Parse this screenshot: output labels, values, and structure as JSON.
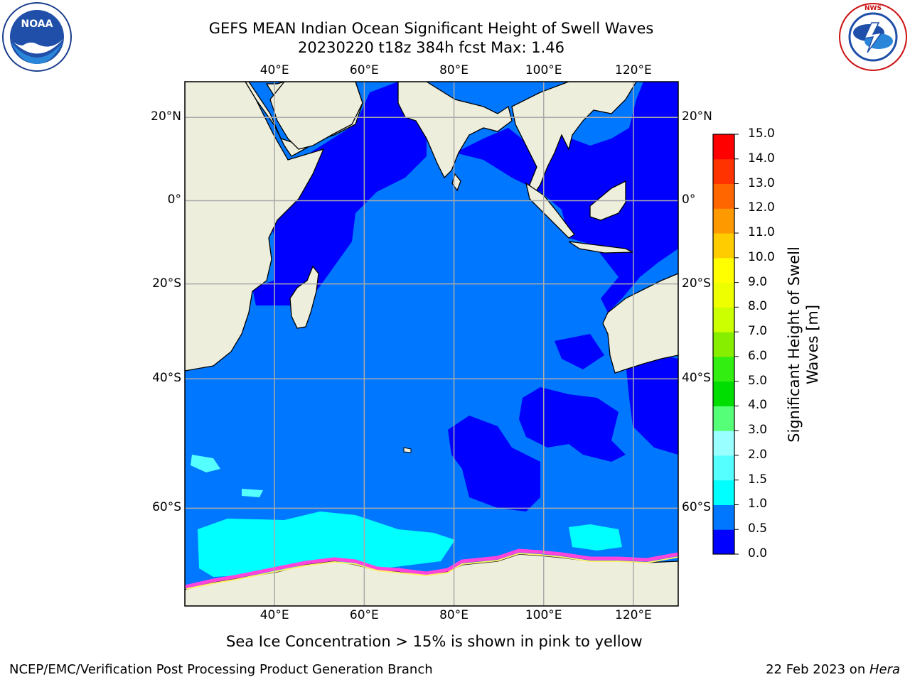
{
  "title": {
    "line1": "GEFS MEAN Indian Ocean Significant Height of Swell Waves",
    "line2": "20230220 t18z 384h fcst   Max: 1.46"
  },
  "caption": "Sea Ice Concentration > 15% is shown in pink to yellow",
  "footer": {
    "left": "NCEP/EMC/Verification Post Processing Product Generation Branch",
    "right_prefix": "22 Feb 2023 on ",
    "right_machine": "Hera"
  },
  "logos": {
    "left": "NOAA",
    "right": "NATIONAL WEATHER SERVICE"
  },
  "map": {
    "lon_range": [
      20,
      130
    ],
    "lat_range": [
      -70,
      28
    ],
    "lon_ticks": [
      {
        "value": 40,
        "label": "40°E"
      },
      {
        "value": 60,
        "label": "60°E"
      },
      {
        "value": 80,
        "label": "80°E"
      },
      {
        "value": 100,
        "label": "100°E"
      },
      {
        "value": 120,
        "label": "120°E"
      }
    ],
    "lat_ticks": [
      {
        "value": 20,
        "label": "20°N"
      },
      {
        "value": 0,
        "label": "0°"
      },
      {
        "value": -20,
        "label": "20°S"
      },
      {
        "value": -40,
        "label": "40°S"
      },
      {
        "value": -60,
        "label": "60°S"
      }
    ],
    "grid": true,
    "colors": {
      "land": "#eeeedd",
      "ocean_0_0_5": "#0000ff",
      "ocean_0_5_1_0": "#0077ff",
      "swell_1_0_1_5": "#00ffff",
      "swell_1_5_2_0": "#55ffff",
      "ice_pink": "#ff44dd",
      "ice_yellow": "#ffee66",
      "grid": "#aaaaaa"
    }
  },
  "colorbar": {
    "label": "Significant Height of Swell\nWaves [m]",
    "levels": [
      "0.0",
      "0.5",
      "1.0",
      "1.5",
      "2.0",
      "3.0",
      "4.0",
      "5.0",
      "6.0",
      "7.0",
      "8.0",
      "9.0",
      "10.0",
      "11.0",
      "12.0",
      "13.0",
      "14.0",
      "15.0"
    ],
    "colors": [
      "#0000ff",
      "#0077ff",
      "#00ffff",
      "#55ffff",
      "#99ffff",
      "#55ff77",
      "#00dd00",
      "#33ee11",
      "#88ee00",
      "#ccff00",
      "#eeff00",
      "#ffff00",
      "#ffcc00",
      "#ff9900",
      "#ff6600",
      "#ff3300",
      "#ff0000"
    ]
  }
}
